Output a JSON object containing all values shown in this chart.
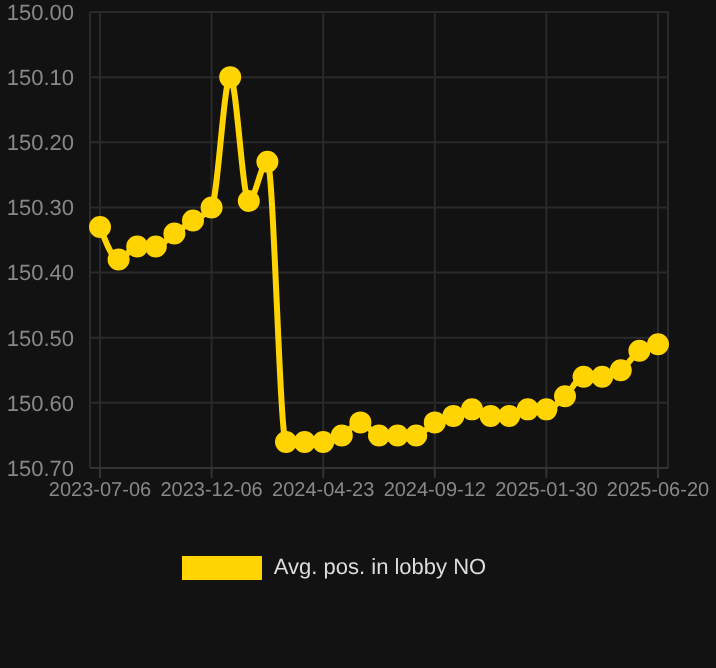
{
  "chart_data": {
    "type": "line",
    "categories": [
      "2023-07-06",
      null,
      null,
      null,
      null,
      null,
      "2023-12-06",
      null,
      null,
      null,
      null,
      null,
      "2024-04-23",
      null,
      null,
      null,
      null,
      null,
      "2024-09-12",
      null,
      null,
      null,
      null,
      null,
      "2025-01-30",
      null,
      null,
      null,
      null,
      null,
      "2025-06-20"
    ],
    "series": [
      {
        "name": "Avg. pos. in lobby NO",
        "color": "#ffd400",
        "values": [
          150.33,
          150.38,
          150.36,
          150.36,
          150.34,
          150.32,
          150.3,
          150.1,
          150.29,
          150.23,
          150.66,
          150.66,
          150.66,
          150.65,
          150.63,
          150.65,
          150.65,
          150.65,
          150.63,
          150.62,
          150.61,
          150.62,
          150.62,
          150.61,
          150.61,
          150.59,
          150.56,
          150.56,
          150.55,
          150.52,
          150.51
        ]
      }
    ],
    "ylim": [
      150.7,
      150.0
    ],
    "yticks": [
      {
        "value": 150.0,
        "label": "150.00"
      },
      {
        "value": 150.1,
        "label": "150.10"
      },
      {
        "value": 150.2,
        "label": "150.20"
      },
      {
        "value": 150.3,
        "label": "150.30"
      },
      {
        "value": 150.4,
        "label": "150.40"
      },
      {
        "value": 150.5,
        "label": "150.50"
      },
      {
        "value": 150.6,
        "label": "150.60"
      },
      {
        "value": 150.7,
        "label": "150.70"
      }
    ],
    "grid": true,
    "legend": "bottom",
    "marker": "circle",
    "line_style": "solid"
  }
}
